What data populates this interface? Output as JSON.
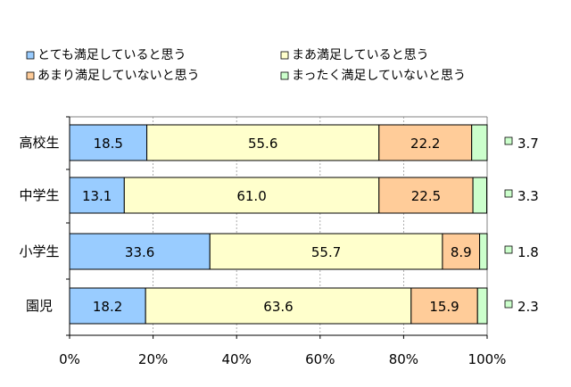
{
  "chart_data": {
    "type": "bar",
    "stacked": true,
    "orientation": "horizontal",
    "percent": true,
    "title": "",
    "xlabel": "",
    "ylabel": "",
    "xlim": [
      0,
      100
    ],
    "x_ticks": [
      "0%",
      "20%",
      "40%",
      "60%",
      "80%",
      "100%"
    ],
    "categories": [
      "高校生",
      "中学生",
      "小学生",
      "園児"
    ],
    "series": [
      {
        "name": "とても満足していると思う",
        "color": "#99ccff",
        "values": [
          18.5,
          13.1,
          33.6,
          18.2
        ],
        "labels": [
          "18.5",
          "13.1",
          "33.6",
          "18.2"
        ]
      },
      {
        "name": "まあ満足していると思う",
        "color": "#ffffcc",
        "values": [
          55.6,
          61.0,
          55.7,
          63.6
        ],
        "labels": [
          "55.6",
          "61.0",
          "55.7",
          "63.6"
        ]
      },
      {
        "name": "あまり満足していないと思う",
        "color": "#ffcc99",
        "values": [
          22.2,
          22.5,
          8.9,
          15.9
        ],
        "labels": [
          "22.2",
          "22.5",
          "8.9",
          "15.9"
        ]
      },
      {
        "name": "まったく満足していないと思う",
        "color": "#ccffcc",
        "values": [
          3.7,
          3.3,
          1.8,
          2.3
        ],
        "labels": [
          "3.7",
          "3.3",
          "1.8",
          "2.3"
        ]
      }
    ],
    "grid": true,
    "legend": "top"
  }
}
